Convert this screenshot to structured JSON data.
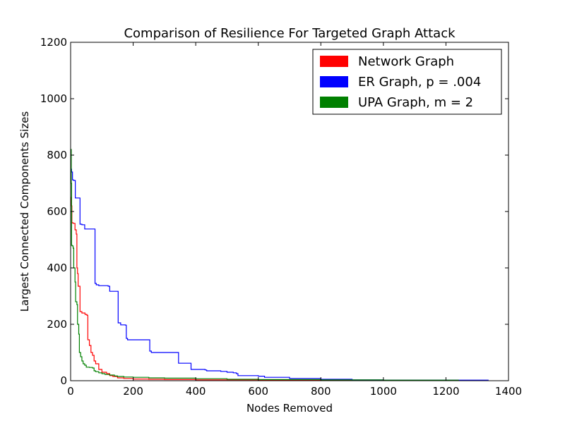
{
  "chart_data": {
    "type": "line",
    "title": "Comparison of Resilience For Targeted Graph Attack",
    "xlabel": "Nodes Removed",
    "ylabel": "Largest Connected Components Sizes",
    "xlim": [
      0,
      1400
    ],
    "ylim": [
      0,
      1200
    ],
    "x_ticks": [
      "0",
      "200",
      "400",
      "600",
      "800",
      "1000",
      "1200",
      "1400"
    ],
    "y_ticks": [
      "0",
      "200",
      "400",
      "600",
      "800",
      "1000",
      "1200"
    ],
    "legend_placement": "upper-right",
    "grid": false,
    "series": [
      {
        "name": "Network Graph",
        "color": "#ff0000",
        "points": [
          [
            0,
            650
          ],
          [
            2,
            620
          ],
          [
            4,
            560
          ],
          [
            8,
            558
          ],
          [
            14,
            535
          ],
          [
            18,
            520
          ],
          [
            20,
            400
          ],
          [
            22,
            380
          ],
          [
            24,
            335
          ],
          [
            30,
            245
          ],
          [
            36,
            240
          ],
          [
            40,
            240
          ],
          [
            46,
            235
          ],
          [
            52,
            232
          ],
          [
            55,
            145
          ],
          [
            60,
            125
          ],
          [
            65,
            100
          ],
          [
            70,
            90
          ],
          [
            75,
            70
          ],
          [
            80,
            60
          ],
          [
            90,
            40
          ],
          [
            100,
            30
          ],
          [
            115,
            25
          ],
          [
            125,
            18
          ],
          [
            135,
            15
          ],
          [
            150,
            10
          ],
          [
            170,
            8
          ],
          [
            200,
            6
          ],
          [
            250,
            5
          ],
          [
            300,
            4
          ],
          [
            400,
            3
          ],
          [
            600,
            2
          ],
          [
            900,
            1
          ],
          [
            1200,
            1
          ],
          [
            1335,
            1
          ]
        ]
      },
      {
        "name": "ER Graph, p = .004",
        "color": "#0000ff",
        "points": [
          [
            0,
            750
          ],
          [
            3,
            740
          ],
          [
            6,
            712
          ],
          [
            10,
            710
          ],
          [
            15,
            648
          ],
          [
            25,
            648
          ],
          [
            30,
            555
          ],
          [
            36,
            553
          ],
          [
            45,
            538
          ],
          [
            60,
            538
          ],
          [
            75,
            538
          ],
          [
            78,
            345
          ],
          [
            82,
            340
          ],
          [
            90,
            337
          ],
          [
            105,
            337
          ],
          [
            120,
            335
          ],
          [
            125,
            317
          ],
          [
            135,
            317
          ],
          [
            150,
            317
          ],
          [
            152,
            205
          ],
          [
            160,
            198
          ],
          [
            175,
            197
          ],
          [
            178,
            150
          ],
          [
            182,
            145
          ],
          [
            200,
            145
          ],
          [
            230,
            145
          ],
          [
            250,
            145
          ],
          [
            253,
            105
          ],
          [
            258,
            100
          ],
          [
            300,
            100
          ],
          [
            340,
            100
          ],
          [
            345,
            62
          ],
          [
            380,
            62
          ],
          [
            385,
            40
          ],
          [
            430,
            38
          ],
          [
            435,
            35
          ],
          [
            480,
            33
          ],
          [
            500,
            30
          ],
          [
            520,
            28
          ],
          [
            530,
            25
          ],
          [
            535,
            18
          ],
          [
            580,
            18
          ],
          [
            600,
            16
          ],
          [
            620,
            12
          ],
          [
            700,
            8
          ],
          [
            800,
            5
          ],
          [
            900,
            3
          ],
          [
            1000,
            2
          ],
          [
            1200,
            2
          ],
          [
            1335,
            1
          ]
        ]
      },
      {
        "name": "UPA Graph, m = 2",
        "color": "#008000",
        "points": [
          [
            0,
            820
          ],
          [
            2,
            700
          ],
          [
            3,
            480
          ],
          [
            5,
            478
          ],
          [
            8,
            470
          ],
          [
            10,
            400
          ],
          [
            14,
            350
          ],
          [
            16,
            280
          ],
          [
            20,
            270
          ],
          [
            22,
            200
          ],
          [
            26,
            165
          ],
          [
            28,
            100
          ],
          [
            32,
            85
          ],
          [
            36,
            70
          ],
          [
            40,
            60
          ],
          [
            45,
            55
          ],
          [
            50,
            48
          ],
          [
            60,
            47
          ],
          [
            70,
            45
          ],
          [
            75,
            35
          ],
          [
            80,
            32
          ],
          [
            90,
            28
          ],
          [
            100,
            25
          ],
          [
            110,
            22
          ],
          [
            125,
            20
          ],
          [
            140,
            17
          ],
          [
            150,
            15
          ],
          [
            170,
            13
          ],
          [
            200,
            12
          ],
          [
            250,
            10
          ],
          [
            300,
            9
          ],
          [
            400,
            7
          ],
          [
            500,
            5
          ],
          [
            600,
            4
          ],
          [
            800,
            3
          ],
          [
            1000,
            2
          ],
          [
            1240,
            1
          ]
        ]
      }
    ]
  }
}
